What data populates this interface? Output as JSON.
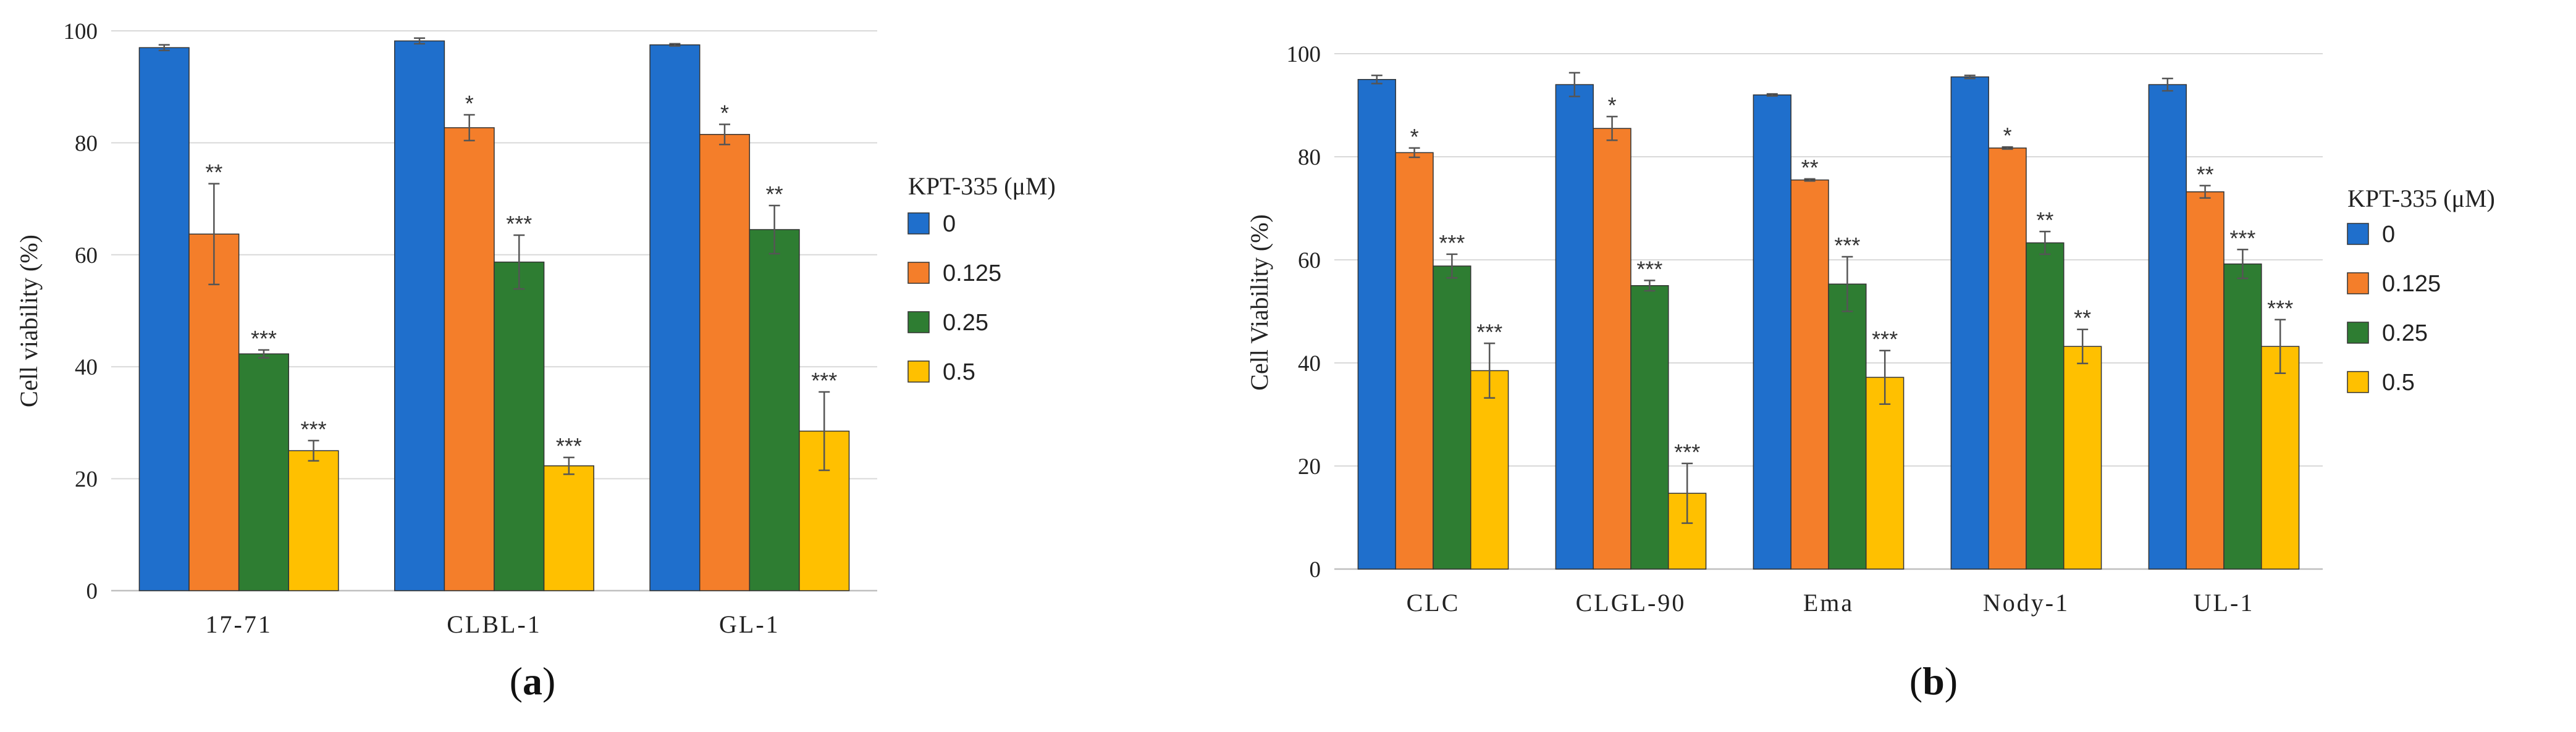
{
  "chart_data": [
    {
      "type": "bar",
      "panel": "a",
      "ylabel": "Cell viability (%)",
      "xlabel": "",
      "ylim": [
        0,
        100
      ],
      "yticks": [
        0,
        20,
        40,
        60,
        80,
        100
      ],
      "categories": [
        "17-71",
        "CLBL-1",
        "GL-1"
      ],
      "legend_title": "KPT-335 (μM)",
      "series": [
        {
          "name": "0",
          "color": "#1F6FCC",
          "values": [
            97,
            98.2,
            97.5
          ],
          "errors": [
            0.5,
            0.5,
            0.2
          ],
          "sig": [
            "",
            "",
            ""
          ]
        },
        {
          "name": "0.125",
          "color": "#F47E2A",
          "values": [
            63.7,
            82.7,
            81.5
          ],
          "errors": [
            9,
            2.3,
            1.8
          ],
          "sig": [
            "**",
            "*",
            "*"
          ]
        },
        {
          "name": "0.25",
          "color": "#2E7D32",
          "values": [
            42.3,
            58.7,
            64.5
          ],
          "errors": [
            0.7,
            4.8,
            4.3
          ],
          "sig": [
            "***",
            "***",
            "**"
          ]
        },
        {
          "name": "0.5",
          "color": "#FFC000",
          "values": [
            25,
            22.3,
            28.5
          ],
          "errors": [
            1.8,
            1.5,
            7
          ],
          "sig": [
            "***",
            "***",
            "***"
          ]
        }
      ]
    },
    {
      "type": "bar",
      "panel": "b",
      "ylabel": "Cell Viability (%)",
      "xlabel": "",
      "ylim": [
        0,
        100
      ],
      "yticks": [
        0,
        20,
        40,
        60,
        80,
        100
      ],
      "categories": [
        "CLC",
        "CLGL-90",
        "Ema",
        "Nody-1",
        "UL-1"
      ],
      "legend_title": "KPT-335 (μM)",
      "series": [
        {
          "name": "0",
          "color": "#1F6FCC",
          "values": [
            95,
            94,
            92,
            95.5,
            94
          ],
          "errors": [
            0.8,
            2.3,
            0.2,
            0.3,
            1.2
          ],
          "sig": [
            "",
            "",
            "",
            "",
            ""
          ]
        },
        {
          "name": "0.125",
          "color": "#F47E2A",
          "values": [
            80.8,
            85.5,
            75.5,
            81.7,
            73.2
          ],
          "errors": [
            0.9,
            2.3,
            0.2,
            0.2,
            1.2
          ],
          "sig": [
            "*",
            "*",
            "**",
            "*",
            "**"
          ]
        },
        {
          "name": "0.25",
          "color": "#2E7D32",
          "values": [
            58.8,
            55,
            55.3,
            63.3,
            59.2
          ],
          "errors": [
            2.3,
            1,
            5.3,
            2.2,
            2.8
          ],
          "sig": [
            "***",
            "***",
            "***",
            "**",
            "***"
          ]
        },
        {
          "name": "0.5",
          "color": "#FFC000",
          "values": [
            38.5,
            14.7,
            37.2,
            43.2,
            43.2
          ],
          "errors": [
            5.3,
            5.8,
            5.2,
            3.3,
            5.2
          ],
          "sig": [
            "***",
            "***",
            "***",
            "**",
            "***"
          ]
        }
      ]
    }
  ]
}
